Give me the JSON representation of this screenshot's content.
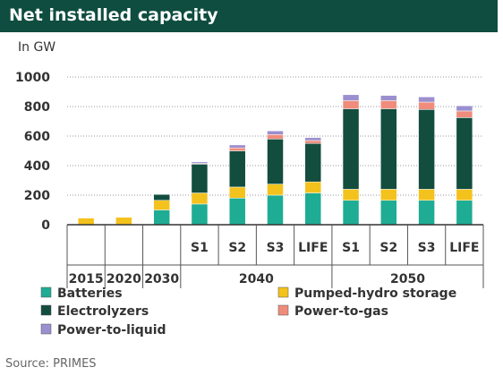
{
  "title": "Net installed capacity",
  "source": "Source: PRIMES",
  "chart_data": {
    "type": "bar",
    "stacked": true,
    "ylabel": "In GW",
    "ylim": [
      0,
      1000
    ],
    "yticks": [
      0,
      200,
      400,
      600,
      800,
      1000
    ],
    "grid": true,
    "categories": [
      "2015",
      "2020",
      "2030",
      "S1",
      "S2",
      "S3",
      "LIFE",
      "S1",
      "S2",
      "S3",
      "LIFE"
    ],
    "groups": [
      {
        "label": "2040",
        "categories": [
          "S1",
          "S2",
          "S3",
          "LIFE"
        ]
      },
      {
        "label": "2050",
        "categories": [
          "S1",
          "S2",
          "S3",
          "LIFE"
        ]
      }
    ],
    "series": [
      {
        "name": "Batteries",
        "color": "#1eac94",
        "values": [
          0,
          0,
          100,
          140,
          180,
          200,
          215,
          165,
          165,
          165,
          165
        ]
      },
      {
        "name": "Pumped-hydro storage",
        "color": "#f4c21c",
        "values": [
          45,
          50,
          65,
          75,
          75,
          75,
          75,
          75,
          75,
          75,
          75
        ]
      },
      {
        "name": "Electrolyzers",
        "color": "#124d3e",
        "values": [
          0,
          0,
          40,
          195,
          245,
          305,
          260,
          545,
          545,
          540,
          485
        ]
      },
      {
        "name": "Power-to-gas",
        "color": "#f08c7c",
        "values": [
          0,
          0,
          0,
          5,
          20,
          30,
          20,
          55,
          55,
          50,
          45
        ]
      },
      {
        "name": "Power-to-liquid",
        "color": "#9b8fcf",
        "values": [
          0,
          0,
          0,
          10,
          20,
          25,
          20,
          40,
          35,
          35,
          35
        ]
      }
    ],
    "legend": "bottom"
  }
}
